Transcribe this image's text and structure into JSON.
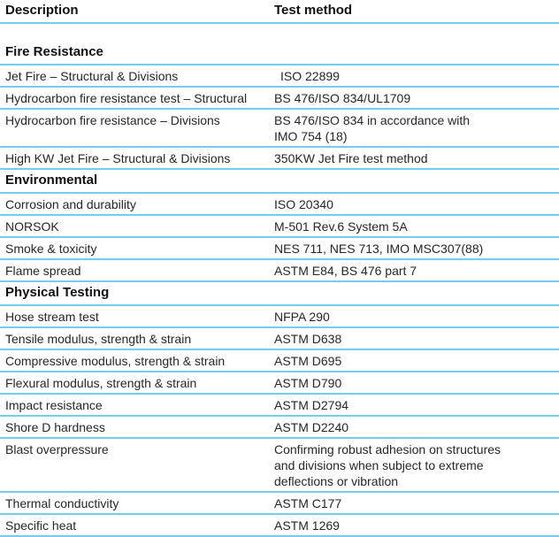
{
  "page": {
    "accent_color": "#74ccee",
    "text_color": "#262626"
  },
  "table": {
    "columns": [
      {
        "label": "Description"
      },
      {
        "label": "Test method"
      }
    ],
    "sections": [
      {
        "title": "Fire Resistance",
        "rows": [
          {
            "description": "Jet Fire – Structural & Divisions",
            "test_method": "ISO 22899",
            "method_indent": true
          },
          {
            "description": "Hydrocarbon fire resistance test – Structural",
            "test_method": "BS 476/ISO 834/UL1709"
          },
          {
            "description": "Hydrocarbon fire resistance – Divisions",
            "test_method": "BS 476/ISO 834 in accordance with\nIMO 754 (18)"
          },
          {
            "description": "High KW Jet Fire – Structural & Divisions",
            "test_method": "350KW Jet Fire test method"
          }
        ]
      },
      {
        "title": "Environmental",
        "rows": [
          {
            "description": "Corrosion and durability",
            "test_method": "ISO 20340"
          },
          {
            "description": "NORSOK",
            "test_method": "M-501 Rev.6 System 5A"
          },
          {
            "description": "Smoke & toxicity",
            "test_method": "NES 711, NES 713, IMO MSC307(88)"
          },
          {
            "description": "Flame spread",
            "test_method": "ASTM E84, BS 476 part 7"
          }
        ]
      },
      {
        "title": "Physical Testing",
        "rows": [
          {
            "description": "Hose stream test",
            "test_method": "NFPA 290"
          },
          {
            "description": "Tensile modulus, strength & strain",
            "test_method": "ASTM D638"
          },
          {
            "description": "Compressive modulus, strength & strain",
            "test_method": "ASTM D695"
          },
          {
            "description": "Flexural modulus, strength & strain",
            "test_method": "ASTM D790"
          },
          {
            "description": "Impact resistance",
            "test_method": "ASTM D2794"
          },
          {
            "description": "Shore D hardness",
            "test_method": "ASTM D2240"
          },
          {
            "description": "Blast overpressure",
            "test_method": "Confirming robust adhesion on structures\nand divisions when subject to extreme\ndeflections or vibration"
          },
          {
            "description": "Thermal conductivity",
            "test_method": "ASTM C177"
          },
          {
            "description": "Specific heat",
            "test_method": "ASTM 1269"
          }
        ]
      }
    ]
  }
}
